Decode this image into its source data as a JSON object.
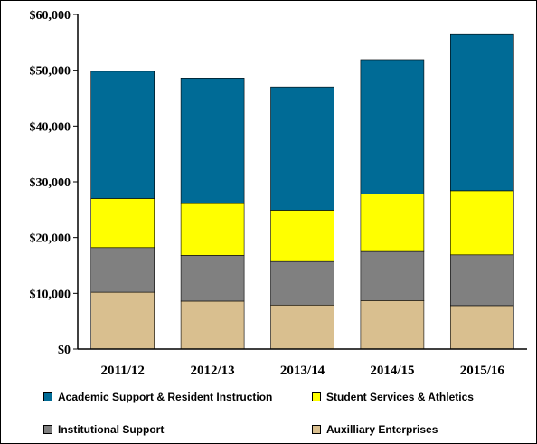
{
  "chart_data": {
    "type": "bar",
    "stacked": true,
    "categories": [
      "2011/12",
      "2012/13",
      "2013/14",
      "2014/15",
      "2015/16"
    ],
    "ylim": [
      0,
      60000
    ],
    "yticks": [
      0,
      10000,
      20000,
      30000,
      40000,
      50000,
      60000
    ],
    "ytick_labels": [
      "$0",
      "$10,000",
      "$20,000",
      "$30,000",
      "$40,000",
      "$50,000",
      "$60,000"
    ],
    "grid": false,
    "legend_position": "bottom",
    "series": [
      {
        "name": "Auxilliary Enterprises",
        "color": "#d9bf8f",
        "values": [
          10200,
          8600,
          7900,
          8700,
          7800
        ]
      },
      {
        "name": "Institutional Support",
        "color": "#808080",
        "values": [
          8000,
          8200,
          7800,
          8800,
          9100
        ]
      },
      {
        "name": "Student Services & Athletics",
        "color": "#ffff00",
        "values": [
          8800,
          9300,
          9200,
          10300,
          11500
        ]
      },
      {
        "name": "Academic Support & Resident Instruction",
        "color": "#006b96",
        "values": [
          22800,
          22500,
          22100,
          24100,
          28000
        ]
      }
    ],
    "legend_order": [
      "Academic Support & Resident Instruction",
      "Student Services & Athletics",
      "Institutional Support",
      "Auxilliary Enterprises"
    ]
  }
}
